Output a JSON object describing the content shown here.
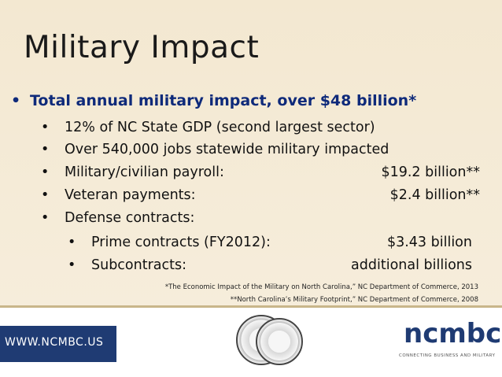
{
  "slide": {
    "title": "Military Impact",
    "main_bullet": "Total annual military impact, over $48 billion*",
    "sub_bullets": [
      {
        "text": "12% of NC State GDP (second largest sector)",
        "amount": ""
      },
      {
        "text": "Over 540,000 jobs statewide military impacted",
        "amount": ""
      },
      {
        "text": "Military/civilian payroll:",
        "amount": "$19.2 billion**"
      },
      {
        "text": "Veteran payments:",
        "amount": "$2.4 billion**"
      },
      {
        "text": "Defense contracts:",
        "amount": ""
      }
    ],
    "sub_sub_bullets": [
      {
        "text": "Prime contracts (FY2012):",
        "amount": "$3.43 billion"
      },
      {
        "text": "Subcontracts:",
        "amount": "additional billions"
      }
    ],
    "sources": [
      "*The Economic Impact of the Military on North Carolina,” NC Department of Commerce, 2013",
      "**North Carolina’s Military Footprint,” NC Department of Commerce, 2008"
    ]
  },
  "footer": {
    "url": "WWW.NCMBC.US",
    "logo_text": "ncmbc",
    "logo_tagline": "CONNECTING BUSINESS AND MILITARY"
  },
  "colors": {
    "accent_blue": "#0e2a7a",
    "footer_blue": "#1f3b73",
    "background": "#f3e8d1"
  }
}
